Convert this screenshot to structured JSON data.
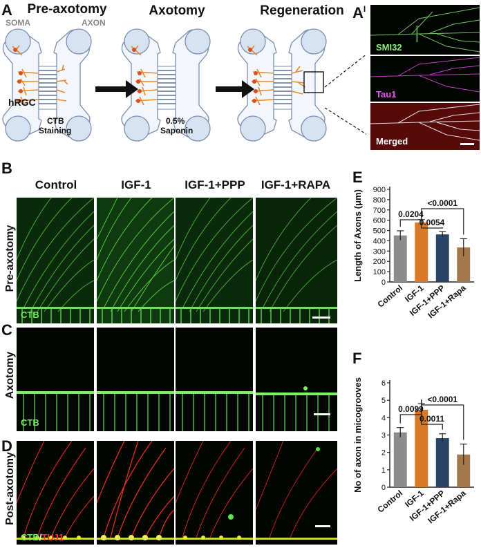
{
  "panel_labels": {
    "a": "A",
    "a_prime": "A",
    "a_prime_mark": "I",
    "b": "B",
    "c": "C",
    "d": "D",
    "e": "E",
    "f": "F"
  },
  "schematic": {
    "titles": [
      "Pre-axotomy",
      "Axotomy",
      "Regeneration"
    ],
    "soma_label": "SOMA",
    "axon_label": "AXON",
    "cell_label": "hRGC",
    "step1_label": [
      "CTB",
      "Staining"
    ],
    "step2_label": [
      "0.5%",
      "Saponin"
    ]
  },
  "aprime": {
    "stain1": "SMI32",
    "stain2": "Tau1",
    "stain3": "Merged"
  },
  "grid": {
    "columns": [
      "Control",
      "IGF-1",
      "IGF-1+PPP",
      "IGF-1+RAPA"
    ],
    "rows": [
      "Pre-axotomy",
      "Axotomy",
      "Post-axotomy"
    ],
    "ctb_label": "CTB",
    "post_label_green": "CTB",
    "post_label_sep": "/",
    "post_label_red": "TUJ1"
  },
  "chart_data": [
    {
      "type": "bar",
      "categories": [
        "Control",
        "IGF-1",
        "IGF-1+PPP",
        "IGF-1+Rapa"
      ],
      "values": [
        452,
        578,
        462,
        335
      ],
      "errors": [
        45,
        28,
        28,
        85
      ],
      "ylabel": "Length of Axons (μm)",
      "ylim": [
        0,
        900
      ],
      "yticks": [
        0,
        100,
        200,
        300,
        400,
        500,
        600,
        700,
        800,
        900
      ],
      "bar_colors": [
        "#8c8c8c",
        "#d97a28",
        "#2a4566",
        "#a3784a"
      ],
      "comparisons": [
        {
          "pair": [
            "Control",
            "IGF-1"
          ],
          "p": "0.0204"
        },
        {
          "pair": [
            "IGF-1",
            "IGF-1+PPP"
          ],
          "p": "0.0054"
        },
        {
          "pair": [
            "IGF-1",
            "IGF-1+Rapa"
          ],
          "p": "<0.0001"
        }
      ]
    },
    {
      "type": "bar",
      "categories": [
        "Control",
        "IGF-1",
        "IGF-1+PPP",
        "IGF-1+Rapa"
      ],
      "values": [
        3.15,
        4.45,
        2.82,
        1.88
      ],
      "errors": [
        0.28,
        0.35,
        0.25,
        0.6
      ],
      "ylabel": "No of axon in micogrooves",
      "ylim": [
        0,
        6
      ],
      "yticks": [
        0,
        1,
        2,
        3,
        4,
        5,
        6
      ],
      "bar_colors": [
        "#8c8c8c",
        "#d97a28",
        "#2a4566",
        "#a3784a"
      ],
      "comparisons": [
        {
          "pair": [
            "Control",
            "IGF-1"
          ],
          "p": "0.0099"
        },
        {
          "pair": [
            "IGF-1",
            "IGF-1+PPP"
          ],
          "p": "0.0011"
        },
        {
          "pair": [
            "IGF-1",
            "IGF-1+Rapa"
          ],
          "p": "<0.0001"
        }
      ]
    }
  ]
}
